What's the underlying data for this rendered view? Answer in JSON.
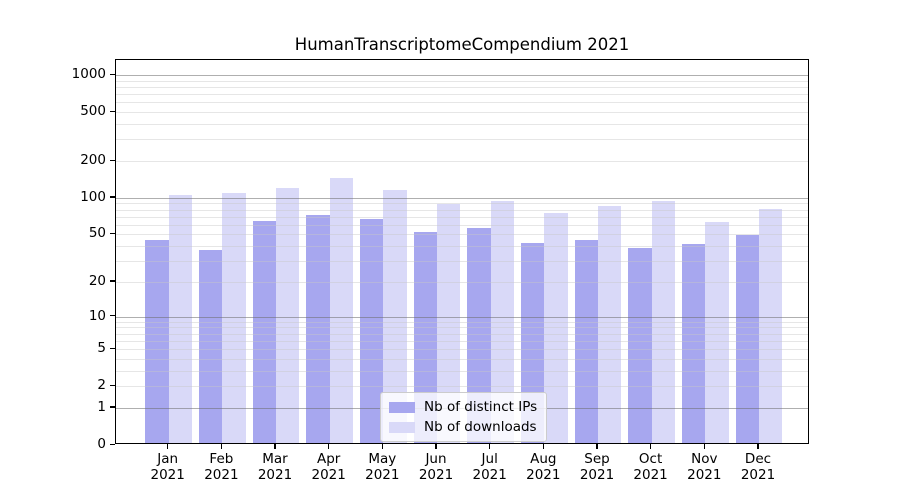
{
  "chart_data": {
    "type": "bar",
    "title": "HumanTranscriptomeCompendium 2021",
    "xlabel": "",
    "ylabel": "",
    "yscale": "log1p",
    "ylim": [
      0,
      1327
    ],
    "y_ticks": [
      0,
      1,
      2,
      5,
      10,
      20,
      50,
      100,
      200,
      500,
      1000
    ],
    "grid": {
      "enabled": true,
      "drawn_above_bars": true,
      "major_at": [
        1,
        10,
        100,
        1000
      ],
      "minor_multiples": [
        2,
        3,
        4,
        5,
        6,
        7,
        8,
        9
      ],
      "major_color": "#b0b0b0",
      "minor_color": "#e6e6e6"
    },
    "categories": [
      "Jan",
      "Feb",
      "Mar",
      "Apr",
      "May",
      "Jun",
      "Jul",
      "Aug",
      "Sep",
      "Oct",
      "Nov",
      "Dec"
    ],
    "year": "2021",
    "series": [
      {
        "name": "Nb of distinct IPs",
        "color": "#a7a7ef",
        "values": [
          43,
          36,
          62,
          70,
          64,
          50,
          54,
          41,
          43,
          37,
          40,
          48
        ]
      },
      {
        "name": "Nb of downloads",
        "color": "#d9d9f8",
        "values": [
          102,
          105,
          116,
          139,
          111,
          85,
          90,
          73,
          83,
          91,
          61,
          78
        ]
      }
    ],
    "legend": {
      "position": "inside lower-center",
      "background": "rgba(255,255,255,0.8)",
      "border_color": "#cccccc"
    },
    "colors": {
      "spine": "#000000",
      "tick_label": "#000000",
      "plot_background": "#ffffff"
    }
  }
}
